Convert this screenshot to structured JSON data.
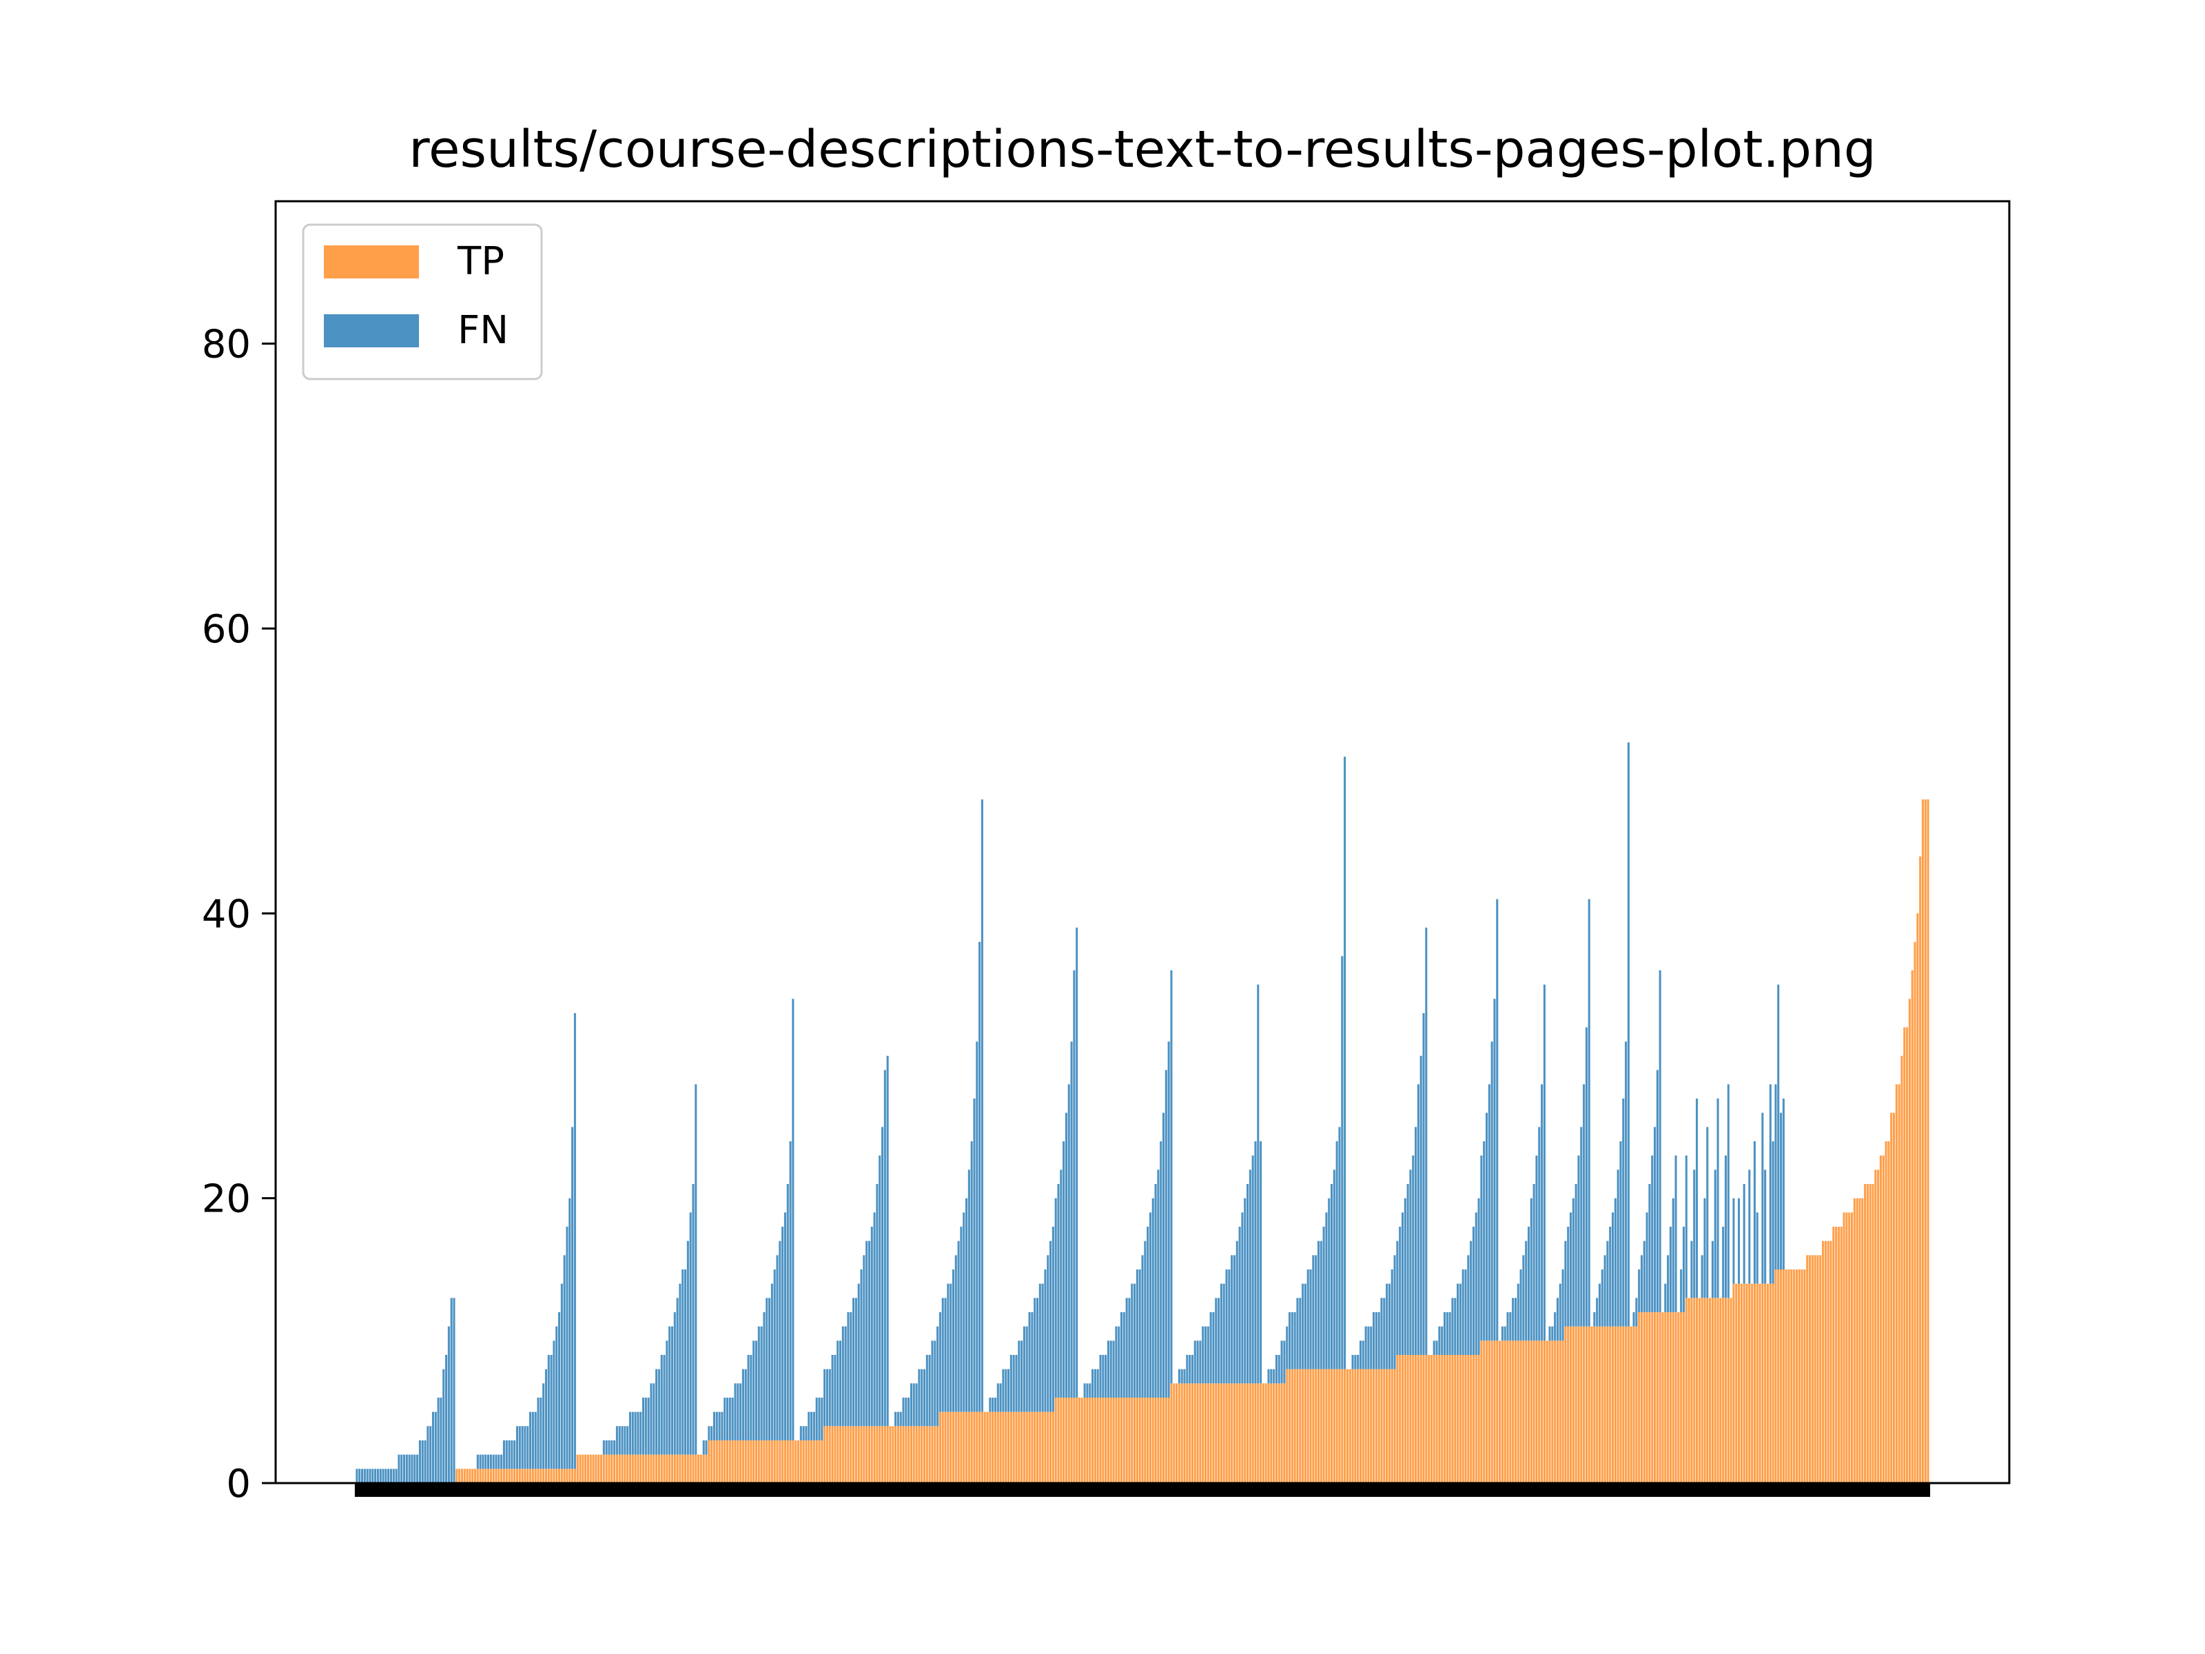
{
  "chart_data": {
    "type": "bar",
    "stacked": true,
    "title": "results/course-descriptions-text-to-results-pages-plot.png",
    "xlabel": "",
    "ylabel": "",
    "ylim": [
      0,
      90
    ],
    "yticks": [
      0,
      20,
      40,
      60,
      80
    ],
    "grid": false,
    "legend_position": "top-left",
    "x_tick_marks": "dense black tick marks along bottom of axis, no labels",
    "colors": {
      "TP": "#ff9f4a",
      "FN": "#4c92c3"
    },
    "series": [
      {
        "name": "TP",
        "values": [
          0,
          0,
          0,
          0,
          0,
          0,
          0,
          0,
          0,
          0,
          0,
          0,
          0,
          0,
          0,
          0,
          0,
          0,
          0,
          0,
          0,
          0,
          0,
          0,
          0,
          0,
          0,
          0,
          0,
          0,
          0,
          0,
          0,
          0,
          0,
          0,
          0,
          0,
          1,
          1,
          1,
          1,
          1,
          1,
          1,
          1,
          1,
          1,
          1,
          1,
          1,
          1,
          1,
          1,
          1,
          1,
          1,
          1,
          1,
          1,
          1,
          1,
          1,
          1,
          1,
          1,
          1,
          1,
          1,
          1,
          1,
          1,
          1,
          1,
          1,
          1,
          1,
          1,
          1,
          1,
          1,
          1,
          1,
          1,
          2,
          2,
          2,
          2,
          2,
          2,
          2,
          2,
          2,
          2,
          2,
          2,
          2,
          2,
          2,
          2,
          2,
          2,
          2,
          2,
          2,
          2,
          2,
          2,
          2,
          2,
          2,
          2,
          2,
          2,
          2,
          2,
          2,
          2,
          2,
          2,
          2,
          2,
          2,
          2,
          2,
          2,
          2,
          2,
          2,
          2,
          2,
          2,
          2,
          2,
          3,
          3,
          3,
          3,
          3,
          3,
          3,
          3,
          3,
          3,
          3,
          3,
          3,
          3,
          3,
          3,
          3,
          3,
          3,
          3,
          3,
          3,
          3,
          3,
          3,
          3,
          3,
          3,
          3,
          3,
          3,
          3,
          3,
          3,
          3,
          3,
          3,
          3,
          3,
          3,
          3,
          3,
          3,
          3,
          4,
          4,
          4,
          4,
          4,
          4,
          4,
          4,
          4,
          4,
          4,
          4,
          4,
          4,
          4,
          4,
          4,
          4,
          4,
          4,
          4,
          4,
          4,
          4,
          4,
          4,
          4,
          4,
          4,
          4,
          4,
          4,
          4,
          4,
          4,
          4,
          4,
          4,
          4,
          4,
          4,
          4,
          4,
          4,
          5,
          5,
          5,
          5,
          5,
          5,
          5,
          5,
          5,
          5,
          5,
          5,
          5,
          5,
          5,
          5,
          5,
          5,
          5,
          5,
          5,
          5,
          5,
          5,
          5,
          5,
          5,
          5,
          5,
          5,
          5,
          5,
          5,
          5,
          5,
          5,
          5,
          5,
          5,
          5,
          5,
          5,
          5,
          5,
          6,
          6,
          6,
          6,
          6,
          6,
          6,
          6,
          6,
          6,
          6,
          6,
          6,
          6,
          6,
          6,
          6,
          6,
          6,
          6,
          6,
          6,
          6,
          6,
          6,
          6,
          6,
          6,
          6,
          6,
          6,
          6,
          6,
          6,
          6,
          6,
          6,
          6,
          6,
          6,
          6,
          6,
          6,
          6,
          7,
          7,
          7,
          7,
          7,
          7,
          7,
          7,
          7,
          7,
          7,
          7,
          7,
          7,
          7,
          7,
          7,
          7,
          7,
          7,
          7,
          7,
          7,
          7,
          7,
          7,
          7,
          7,
          7,
          7,
          7,
          7,
          7,
          7,
          7,
          7,
          7,
          7,
          7,
          7,
          7,
          7,
          7,
          7,
          8,
          8,
          8,
          8,
          8,
          8,
          8,
          8,
          8,
          8,
          8,
          8,
          8,
          8,
          8,
          8,
          8,
          8,
          8,
          8,
          8,
          8,
          8,
          8,
          8,
          8,
          8,
          8,
          8,
          8,
          8,
          8,
          8,
          8,
          8,
          8,
          8,
          8,
          8,
          8,
          8,
          8,
          9,
          9,
          9,
          9,
          9,
          9,
          9,
          9,
          9,
          9,
          9,
          9,
          9,
          9,
          9,
          9,
          9,
          9,
          9,
          9,
          9,
          9,
          9,
          9,
          9,
          9,
          9,
          9,
          9,
          9,
          9,
          9,
          10,
          10,
          10,
          10,
          10,
          10,
          10,
          10,
          10,
          10,
          10,
          10,
          10,
          10,
          10,
          10,
          10,
          10,
          10,
          10,
          10,
          10,
          10,
          10,
          10,
          10,
          10,
          10,
          10,
          10,
          10,
          10,
          11,
          11,
          11,
          11,
          11,
          11,
          11,
          11,
          11,
          11,
          11,
          11,
          11,
          11,
          11,
          11,
          11,
          11,
          11,
          11,
          11,
          11,
          11,
          11,
          11,
          11,
          11,
          11,
          12,
          12,
          12,
          12,
          12,
          12,
          12,
          12,
          12,
          12,
          12,
          12,
          12,
          12,
          12,
          12,
          12,
          12,
          13,
          13,
          13,
          13,
          13,
          13,
          13,
          13,
          13,
          13,
          13,
          13,
          13,
          13,
          13,
          13,
          13,
          13,
          14,
          14,
          14,
          14,
          14,
          14,
          14,
          14,
          14,
          14,
          14,
          14,
          14,
          14,
          14,
          14,
          15,
          15,
          15,
          15,
          15,
          15,
          15,
          15,
          15,
          15,
          15,
          15,
          16,
          16,
          16,
          16,
          16,
          16,
          17,
          17,
          17,
          17,
          18,
          18,
          18,
          18,
          19,
          19,
          19,
          19,
          20,
          20,
          20,
          20,
          21,
          21,
          21,
          21,
          22,
          22,
          23,
          23,
          24,
          24,
          26,
          26,
          28,
          28,
          30,
          32,
          32,
          34,
          36,
          38,
          40,
          44,
          48,
          48,
          48
        ]
      },
      {
        "name": "FN",
        "values": [
          1,
          1,
          1,
          1,
          1,
          1,
          1,
          1,
          1,
          1,
          1,
          1,
          1,
          1,
          1,
          1,
          2,
          2,
          2,
          2,
          2,
          2,
          2,
          2,
          3,
          3,
          3,
          4,
          4,
          5,
          5,
          6,
          6,
          8,
          9,
          11,
          13,
          13,
          0,
          0,
          0,
          0,
          0,
          0,
          0,
          0,
          1,
          1,
          1,
          1,
          1,
          1,
          1,
          1,
          1,
          1,
          2,
          2,
          2,
          2,
          2,
          3,
          3,
          3,
          3,
          3,
          4,
          4,
          4,
          5,
          5,
          6,
          7,
          8,
          8,
          9,
          10,
          11,
          13,
          15,
          17,
          19,
          24,
          32,
          0,
          0,
          0,
          0,
          0,
          0,
          0,
          0,
          0,
          0,
          1,
          1,
          1,
          1,
          1,
          2,
          2,
          2,
          2,
          2,
          3,
          3,
          3,
          3,
          3,
          4,
          4,
          4,
          5,
          5,
          6,
          6,
          7,
          7,
          8,
          9,
          9,
          10,
          11,
          12,
          13,
          13,
          15,
          17,
          19,
          26,
          0,
          0,
          1,
          1,
          1,
          1,
          2,
          2,
          2,
          2,
          3,
          3,
          3,
          3,
          4,
          4,
          4,
          5,
          5,
          6,
          6,
          7,
          7,
          8,
          8,
          9,
          10,
          10,
          11,
          12,
          13,
          14,
          15,
          16,
          18,
          21,
          31,
          0,
          0,
          1,
          1,
          1,
          2,
          2,
          2,
          3,
          3,
          3,
          4,
          4,
          4,
          5,
          5,
          6,
          6,
          7,
          7,
          8,
          8,
          9,
          9,
          10,
          11,
          12,
          13,
          13,
          14,
          15,
          17,
          19,
          21,
          25,
          26,
          0,
          0,
          1,
          1,
          1,
          2,
          2,
          2,
          3,
          3,
          3,
          4,
          4,
          4,
          5,
          5,
          6,
          6,
          7,
          7,
          8,
          8,
          9,
          9,
          10,
          11,
          12,
          13,
          14,
          15,
          17,
          19,
          22,
          26,
          33,
          43,
          0,
          0,
          1,
          1,
          1,
          2,
          2,
          3,
          3,
          3,
          4,
          4,
          4,
          5,
          5,
          6,
          6,
          7,
          7,
          8,
          8,
          9,
          9,
          10,
          11,
          12,
          13,
          14,
          15,
          16,
          18,
          20,
          22,
          25,
          30,
          33,
          0,
          0,
          1,
          1,
          1,
          2,
          2,
          2,
          3,
          3,
          3,
          4,
          4,
          4,
          5,
          5,
          6,
          6,
          7,
          7,
          8,
          8,
          9,
          9,
          10,
          11,
          12,
          13,
          14,
          15,
          16,
          18,
          20,
          23,
          25,
          29,
          0,
          0,
          1,
          1,
          1,
          2,
          2,
          2,
          3,
          3,
          3,
          4,
          4,
          4,
          5,
          5,
          6,
          6,
          7,
          7,
          8,
          8,
          9,
          9,
          10,
          11,
          12,
          13,
          14,
          15,
          16,
          17,
          28,
          17,
          0,
          0,
          1,
          1,
          1,
          2,
          2,
          3,
          3,
          3,
          4,
          4,
          4,
          5,
          5,
          6,
          6,
          7,
          7,
          8,
          8,
          9,
          9,
          10,
          11,
          12,
          13,
          14,
          16,
          17,
          29,
          43,
          0,
          0,
          1,
          1,
          1,
          2,
          2,
          3,
          3,
          3,
          4,
          4,
          4,
          5,
          5,
          6,
          6,
          7,
          8,
          8,
          9,
          10,
          11,
          12,
          13,
          14,
          16,
          19,
          21,
          24,
          30,
          0,
          0,
          1,
          1,
          2,
          2,
          3,
          3,
          3,
          4,
          4,
          5,
          5,
          6,
          6,
          7,
          8,
          9,
          10,
          11,
          13,
          14,
          16,
          18,
          21,
          24,
          31,
          0,
          1,
          1,
          2,
          2,
          3,
          3,
          4,
          5,
          6,
          7,
          8,
          10,
          11,
          13,
          15,
          18,
          25,
          0,
          1,
          1,
          2,
          3,
          4,
          5,
          6,
          7,
          8,
          9,
          10,
          12,
          14,
          17,
          21,
          30,
          0,
          1,
          2,
          3,
          4,
          5,
          6,
          7,
          8,
          9,
          11,
          13,
          16,
          20,
          41,
          0,
          1,
          2,
          3,
          4,
          5,
          7,
          9,
          11,
          13,
          17,
          24,
          0,
          2,
          4,
          6,
          8,
          11,
          0,
          3,
          6,
          10,
          0,
          4,
          9,
          14,
          0,
          3,
          7,
          12,
          0,
          4,
          9,
          14,
          0,
          5,
          10,
          15,
          0,
          6,
          0,
          6,
          0,
          7,
          0,
          8,
          0,
          10,
          5,
          0,
          12,
          8,
          0,
          14,
          10,
          13,
          20,
          11,
          12
        ]
      }
    ]
  }
}
